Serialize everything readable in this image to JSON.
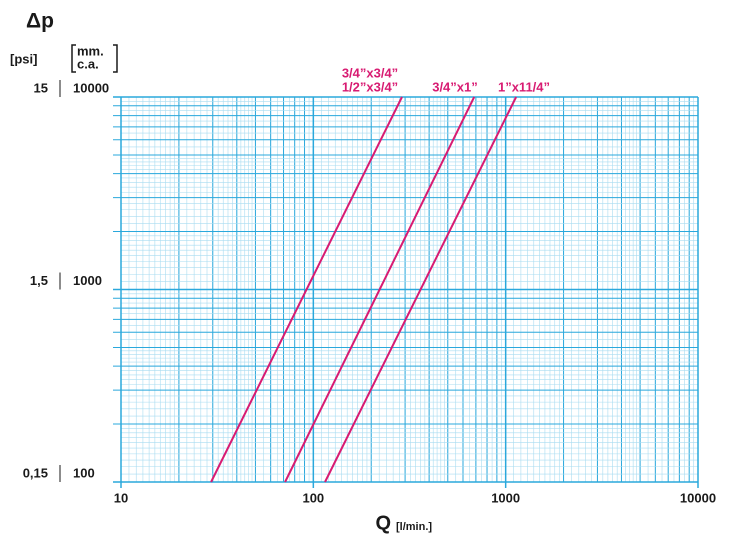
{
  "chart_data": {
    "type": "line",
    "title": "Δp",
    "y_label": "[psi]",
    "y2_label": [
      "mm.",
      "c.a."
    ],
    "x_label": "Q",
    "x_unit": "[l/min.]",
    "log_x": true,
    "log_y": true,
    "grid": true,
    "xlim": [
      10,
      10000
    ],
    "xticks": [
      10,
      100,
      1000,
      10000
    ],
    "ylim": [
      100,
      10000
    ],
    "yticks": [
      100,
      1000,
      10000
    ],
    "y2lim": [
      0.15,
      15
    ],
    "y2ticks": [
      {
        "value": 0.15,
        "label": "0,15"
      },
      {
        "value": 1.5,
        "label": "1,5"
      },
      {
        "value": 15,
        "label": "15"
      }
    ],
    "series": [
      {
        "labels": [
          "3/4”x3/4”",
          "1/2”x3/4”"
        ],
        "color": "#d81b72",
        "x": [
          29.4,
          289
        ],
        "values": [
          100,
          10000
        ]
      },
      {
        "labels": [
          "3/4”x1”"
        ],
        "color": "#d81b72",
        "x": [
          71.3,
          686
        ],
        "values": [
          100,
          10000
        ]
      },
      {
        "labels": [
          "1”x11/4”"
        ],
        "color": "#d81b72",
        "x": [
          115,
          1133
        ],
        "values": [
          100,
          10000
        ]
      }
    ]
  }
}
